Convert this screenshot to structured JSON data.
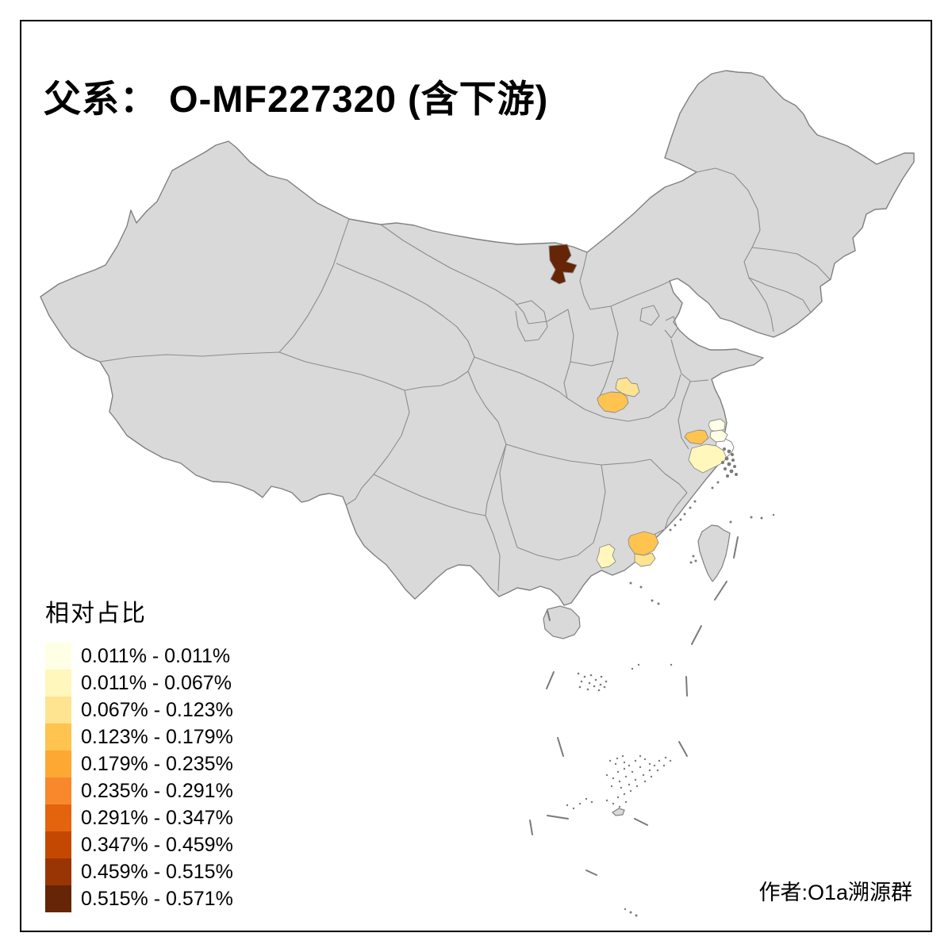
{
  "title": "父系： O-MF227320 (含下游)",
  "author_credit": "作者:O1a溯源群",
  "legend": {
    "title": "相对占比",
    "classes": [
      {
        "label": "0.011% - 0.011%",
        "color": "#FFFFE5"
      },
      {
        "label": "0.011% - 0.067%",
        "color": "#FFF7BC"
      },
      {
        "label": "0.067% - 0.123%",
        "color": "#FEE391"
      },
      {
        "label": "0.123% - 0.179%",
        "color": "#FEC44F"
      },
      {
        "label": "0.179% - 0.235%",
        "color": "#FEA834"
      },
      {
        "label": "0.235% - 0.291%",
        "color": "#F8882B"
      },
      {
        "label": "0.291% - 0.347%",
        "color": "#E3640D"
      },
      {
        "label": "0.347% - 0.459%",
        "color": "#C54802"
      },
      {
        "label": "0.459% - 0.515%",
        "color": "#993404"
      },
      {
        "label": "0.515% - 0.571%",
        "color": "#662506"
      }
    ]
  },
  "map": {
    "land_color": "#D9D9D9",
    "border_color": "#8C8C8C",
    "national_border_color": "#808080",
    "background": "#FFFFFF",
    "unclassified_region_color": "#FFFFFF",
    "island_dot_color": "#7A7A7A"
  },
  "chart_data": {
    "type": "choropleth",
    "title": "父系： O-MF227320 (含下游)",
    "legend_title": "相对占比",
    "unit": "%",
    "value_range": [
      0.011,
      0.571
    ],
    "regions": [
      {
        "id": "north-region",
        "class_index": 9
      },
      {
        "id": "central-region-upper",
        "class_index": 2
      },
      {
        "id": "central-region-lower",
        "class_index": 3
      },
      {
        "id": "east-region-inland",
        "class_index": 3
      },
      {
        "id": "east-region-coast-1",
        "class_index": 0
      },
      {
        "id": "east-region-coast-2",
        "class_index": 0
      },
      {
        "id": "east-region-south",
        "class_index": 1
      },
      {
        "id": "south-region-west",
        "class_index": 1
      },
      {
        "id": "south-region-east",
        "class_index": 3
      },
      {
        "id": "south-region-coast",
        "class_index": 2
      }
    ]
  }
}
